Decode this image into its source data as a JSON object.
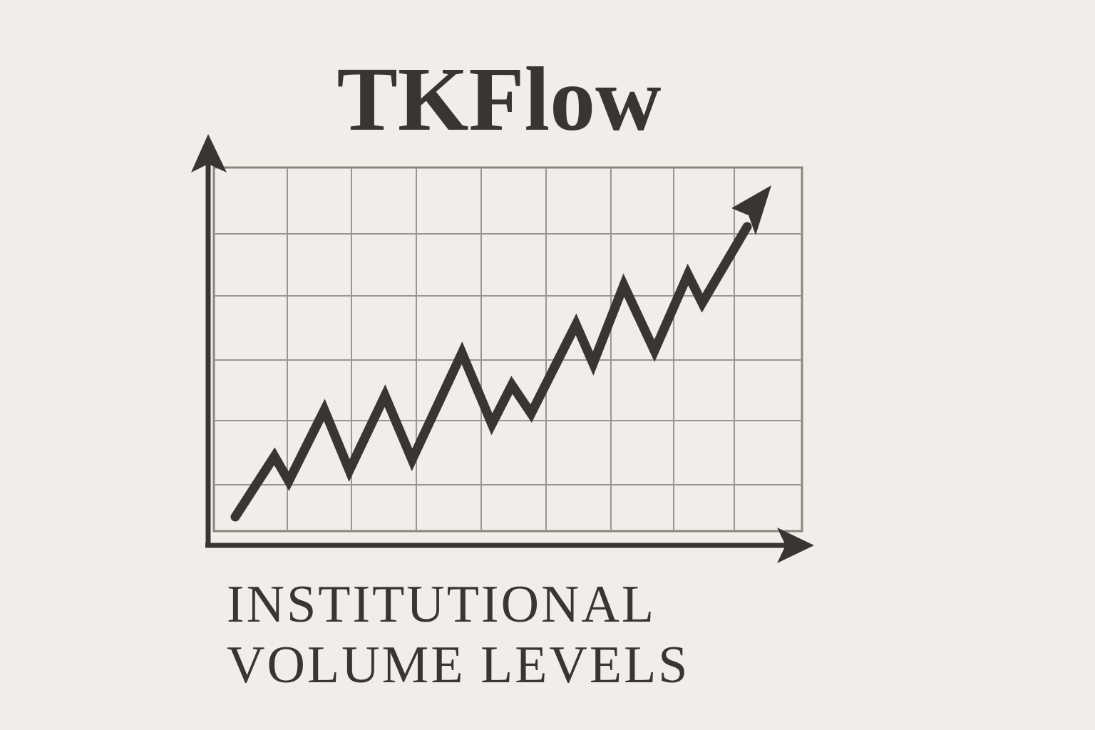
{
  "header": {
    "title": "TKFlow"
  },
  "caption": {
    "lines": [
      "INSTITUTIONAL",
      "VOLUME LEVELS"
    ]
  }
}
